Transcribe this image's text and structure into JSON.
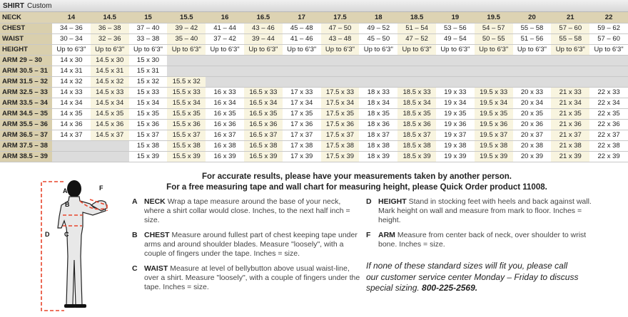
{
  "title": {
    "main": "SHIRT",
    "sub": "Custom"
  },
  "colors": {
    "header": "#ddd3b3",
    "label_column": "#d9cfad",
    "alt_column": "#f8f4df",
    "unavailable": "#dcdcdc",
    "tape": "#e8452c"
  },
  "table": {
    "header_label": "NECK",
    "necks": [
      "14",
      "14.5",
      "15",
      "15.5",
      "16",
      "16.5",
      "17",
      "17.5",
      "18",
      "18.5",
      "19",
      "19.5",
      "20",
      "21",
      "22"
    ],
    "rows": [
      {
        "label": "CHEST",
        "cells": [
          "34 – 36",
          "36 – 38",
          "37 – 40",
          "39 – 42",
          "41 – 44",
          "43 – 46",
          "45 – 48",
          "47 – 50",
          "49 – 52",
          "51 – 54",
          "53 – 56",
          "54 – 57",
          "55 – 58",
          "57 – 60",
          "59 – 62"
        ]
      },
      {
        "label": "WAIST",
        "cells": [
          "30 – 34",
          "32 – 36",
          "33 – 38",
          "35 – 40",
          "37 – 42",
          "39 – 44",
          "41 – 46",
          "43 – 48",
          "45 – 50",
          "47 – 52",
          "49 – 54",
          "50 – 55",
          "51 – 56",
          "55 – 58",
          "57 – 60"
        ]
      },
      {
        "label": "HEIGHT",
        "cells": [
          "Up to 6'3\"",
          "Up to 6'3\"",
          "Up to 6'3\"",
          "Up to 6'3\"",
          "Up to 6'3\"",
          "Up to 6'3\"",
          "Up to 6'3\"",
          "Up to 6'3\"",
          "Up to 6'3\"",
          "Up to 6'3\"",
          "Up to 6'3\"",
          "Up to 6'3\"",
          "Up to 6'3\"",
          "Up to 6'3\"",
          "Up to 6'3\""
        ]
      },
      {
        "label": "ARM 29 – 30",
        "cells": [
          "14 x 30",
          "14.5 x 30",
          "15 x 30",
          null,
          null,
          null,
          null,
          null,
          null,
          null,
          null,
          null,
          null,
          null,
          null
        ]
      },
      {
        "label": "ARM 30.5 – 31",
        "cells": [
          "14 x 31",
          "14.5 x 31",
          "15 x 31",
          null,
          null,
          null,
          null,
          null,
          null,
          null,
          null,
          null,
          null,
          null,
          null
        ]
      },
      {
        "label": "ARM 31.5 – 32",
        "cells": [
          "14 x 32",
          "14.5 x 32",
          "15 x 32",
          "15.5 x 32",
          null,
          null,
          null,
          null,
          null,
          null,
          null,
          null,
          null,
          null,
          null
        ]
      },
      {
        "label": "ARM 32.5 – 33",
        "cells": [
          "14 x 33",
          "14.5 x 33",
          "15 x 33",
          "15.5 x 33",
          "16 x 33",
          "16.5 x 33",
          "17 x 33",
          "17.5 x 33",
          "18 x 33",
          "18.5 x 33",
          "19 x 33",
          "19.5 x 33",
          "20 x 33",
          "21 x 33",
          "22 x 33"
        ]
      },
      {
        "label": "ARM 33.5 – 34",
        "cells": [
          "14 x 34",
          "14.5 x 34",
          "15 x 34",
          "15.5 x 34",
          "16 x 34",
          "16.5 x 34",
          "17 x 34",
          "17.5 x 34",
          "18 x 34",
          "18.5 x 34",
          "19 x 34",
          "19.5 x 34",
          "20 x 34",
          "21 x 34",
          "22 x 34"
        ]
      },
      {
        "label": "ARM 34.5 – 35",
        "cells": [
          "14 x 35",
          "14.5 x 35",
          "15 x 35",
          "15.5 x 35",
          "16 x 35",
          "16.5 x 35",
          "17 x 35",
          "17.5 x 35",
          "18 x 35",
          "18.5 x 35",
          "19 x 35",
          "19.5 x 35",
          "20 x 35",
          "21 x 35",
          "22 x 35"
        ]
      },
      {
        "label": "ARM 35.5 – 36",
        "cells": [
          "14 x 36",
          "14.5 x 36",
          "15 x 36",
          "15.5 x 36",
          "16 x 36",
          "16.5 x 36",
          "17 x 36",
          "17.5 x 36",
          "18 x 36",
          "18.5 x 36",
          "19 x 36",
          "19.5 x 36",
          "20 x 36",
          "21 x 36",
          "22 x 36"
        ]
      },
      {
        "label": "ARM 36.5 – 37",
        "cells": [
          "14 x 37",
          "14.5 x 37",
          "15 x 37",
          "15.5 x 37",
          "16 x 37",
          "16.5 x 37",
          "17 x 37",
          "17.5 x 37",
          "18 x 37",
          "18.5 x 37",
          "19 x 37",
          "19.5 x 37",
          "20 x 37",
          "21 x 37",
          "22 x 37"
        ]
      },
      {
        "label": "ARM 37.5 – 38",
        "cells": [
          null,
          null,
          "15 x 38",
          "15.5 x 38",
          "16 x 38",
          "16.5 x 38",
          "17 x 38",
          "17.5 x 38",
          "18 x 38",
          "18.5 x 38",
          "19 x 38",
          "19.5 x 38",
          "20 x 38",
          "21 x 38",
          "22 x 38"
        ]
      },
      {
        "label": "ARM 38.5 – 39",
        "cells": [
          null,
          null,
          "15 x 39",
          "15.5 x 39",
          "16 x 39",
          "16.5 x 39",
          "17 x 39",
          "17.5 x 39",
          "18 x 39",
          "18.5 x 39",
          "19 x 39",
          "19.5 x 39",
          "20 x 39",
          "21 x 39",
          "22 x 39"
        ]
      }
    ]
  },
  "figure": {
    "labels": [
      "A",
      "B",
      "C",
      "D",
      "F"
    ]
  },
  "instructions": {
    "heading1": "For accurate results, please have your measurements taken by another person.",
    "heading2": "For a free measuring tape and wall chart for measuring height, please Quick Order product 11008.",
    "items": [
      {
        "letter": "A",
        "title": "NECK",
        "text": "Wrap a tape measure around the base of your neck, where a shirt collar would close. Inches, to the next half inch = size."
      },
      {
        "letter": "B",
        "title": "CHEST",
        "text": "Measure around fullest part of chest keeping tape under arms and around shoulder blades. Measure \"loosely\", with a couple of fingers under the tape. Inches = size."
      },
      {
        "letter": "C",
        "title": "WAIST",
        "text": "Measure at level of bellybutton above usual waist-line, over a shirt. Measure \"loosely\", with a couple of fingers under the tape. Inches = size."
      },
      {
        "letter": "D",
        "title": "HEIGHT",
        "text": "Stand in stocking feet with heels and back against wall. Mark height on wall and measure from mark to floor. Inches = height."
      },
      {
        "letter": "F",
        "title": "ARM",
        "text": "Measure from center back of neck, over shoulder to wrist bone. Inches = size."
      }
    ],
    "note": "If none of these standard sizes will fit you, please call our customer service center Monday – Friday to discuss special sizing.",
    "phone": "800-225-2569."
  }
}
